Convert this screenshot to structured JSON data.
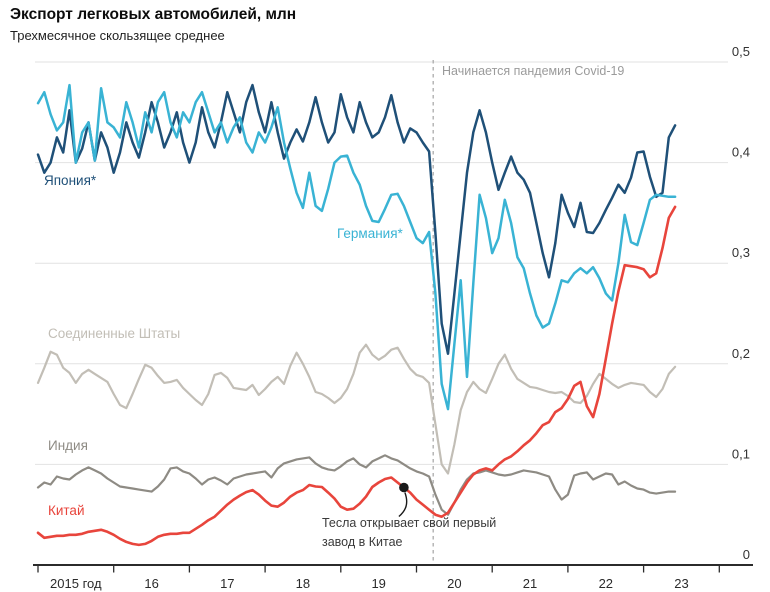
{
  "title": "Экспорт легковых автомобилей, млн",
  "subtitle": "Трехмесячное скользящее среднее",
  "chart_data": {
    "type": "line",
    "x_start_year": 2015,
    "points_per_year": 12,
    "x_tick_labels": [
      "2015 год",
      "16",
      "17",
      "18",
      "19",
      "20",
      "21",
      "22",
      "23"
    ],
    "y_tick_labels": [
      "0",
      "0,1",
      "0,2",
      "0,3",
      "0,4",
      "0,5"
    ],
    "ylim": [
      0,
      0.5
    ],
    "grid": true,
    "legend_position": "inline-labels",
    "annotations": {
      "covid": {
        "text": "Начинается пандемия Covid-19",
        "x_year": 2020.22
      },
      "tesla": {
        "text_line1": "Тесла открывает свой первый",
        "text_line2": "завод в Китае",
        "x_year": 2019.833,
        "value": 0.077
      }
    },
    "series": [
      {
        "id": "japan",
        "name": "Япония*",
        "color": "#1f5078",
        "values": [
          0.408,
          0.39,
          0.4,
          0.425,
          0.41,
          0.452,
          0.4,
          0.414,
          0.44,
          0.402,
          0.43,
          0.415,
          0.39,
          0.41,
          0.44,
          0.42,
          0.405,
          0.43,
          0.46,
          0.44,
          0.415,
          0.43,
          0.45,
          0.42,
          0.4,
          0.42,
          0.455,
          0.43,
          0.415,
          0.44,
          0.47,
          0.45,
          0.43,
          0.46,
          0.477,
          0.45,
          0.43,
          0.46,
          0.43,
          0.404,
          0.42,
          0.433,
          0.421,
          0.44,
          0.465,
          0.44,
          0.42,
          0.43,
          0.468,
          0.445,
          0.43,
          0.46,
          0.44,
          0.425,
          0.43,
          0.445,
          0.467,
          0.44,
          0.42,
          0.434,
          0.43,
          0.42,
          0.411,
          0.33,
          0.24,
          0.21,
          0.27,
          0.33,
          0.39,
          0.43,
          0.452,
          0.43,
          0.4,
          0.373,
          0.39,
          0.406,
          0.39,
          0.383,
          0.37,
          0.34,
          0.31,
          0.286,
          0.32,
          0.368,
          0.35,
          0.336,
          0.36,
          0.331,
          0.33,
          0.34,
          0.353,
          0.365,
          0.378,
          0.37,
          0.385,
          0.41,
          0.411,
          0.386,
          0.366,
          0.37,
          0.425,
          0.437
        ]
      },
      {
        "id": "germany",
        "name": "Германия*",
        "color": "#39b3d4",
        "values": [
          0.459,
          0.47,
          0.448,
          0.432,
          0.44,
          0.477,
          0.4,
          0.43,
          0.44,
          0.402,
          0.474,
          0.44,
          0.435,
          0.425,
          0.46,
          0.44,
          0.415,
          0.45,
          0.43,
          0.46,
          0.47,
          0.44,
          0.425,
          0.45,
          0.44,
          0.46,
          0.47,
          0.45,
          0.43,
          0.44,
          0.42,
          0.435,
          0.445,
          0.42,
          0.41,
          0.43,
          0.42,
          0.435,
          0.455,
          0.42,
          0.394,
          0.37,
          0.355,
          0.39,
          0.357,
          0.352,
          0.374,
          0.4,
          0.406,
          0.407,
          0.39,
          0.378,
          0.357,
          0.342,
          0.341,
          0.354,
          0.368,
          0.369,
          0.357,
          0.341,
          0.325,
          0.32,
          0.331,
          0.27,
          0.18,
          0.155,
          0.22,
          0.283,
          0.187,
          0.28,
          0.368,
          0.345,
          0.31,
          0.325,
          0.363,
          0.34,
          0.306,
          0.295,
          0.27,
          0.248,
          0.236,
          0.24,
          0.26,
          0.283,
          0.281,
          0.29,
          0.295,
          0.29,
          0.296,
          0.285,
          0.27,
          0.263,
          0.3,
          0.348,
          0.321,
          0.318,
          0.34,
          0.363,
          0.368,
          0.367,
          0.366,
          0.366
        ]
      },
      {
        "id": "united-states",
        "name": "Соединенные Штаты",
        "color": "#c2beb6",
        "values": [
          0.181,
          0.196,
          0.212,
          0.209,
          0.196,
          0.191,
          0.181,
          0.19,
          0.194,
          0.19,
          0.186,
          0.182,
          0.17,
          0.159,
          0.156,
          0.17,
          0.185,
          0.199,
          0.196,
          0.188,
          0.181,
          0.182,
          0.184,
          0.176,
          0.17,
          0.164,
          0.159,
          0.17,
          0.189,
          0.191,
          0.186,
          0.176,
          0.175,
          0.174,
          0.179,
          0.169,
          0.175,
          0.182,
          0.187,
          0.18,
          0.198,
          0.211,
          0.2,
          0.187,
          0.172,
          0.17,
          0.166,
          0.161,
          0.166,
          0.175,
          0.19,
          0.211,
          0.219,
          0.209,
          0.204,
          0.208,
          0.214,
          0.216,
          0.205,
          0.195,
          0.189,
          0.187,
          0.181,
          0.14,
          0.1,
          0.091,
          0.12,
          0.154,
          0.172,
          0.182,
          0.175,
          0.171,
          0.185,
          0.2,
          0.209,
          0.195,
          0.185,
          0.181,
          0.177,
          0.176,
          0.174,
          0.172,
          0.171,
          0.172,
          0.168,
          0.162,
          0.161,
          0.168,
          0.18,
          0.19,
          0.185,
          0.18,
          0.176,
          0.179,
          0.181,
          0.18,
          0.179,
          0.172,
          0.167,
          0.175,
          0.19,
          0.197
        ]
      },
      {
        "id": "india",
        "name": "Индия",
        "color": "#8e8b84",
        "values": [
          0.077,
          0.082,
          0.08,
          0.088,
          0.086,
          0.085,
          0.09,
          0.094,
          0.097,
          0.094,
          0.091,
          0.086,
          0.082,
          0.078,
          0.077,
          0.076,
          0.075,
          0.074,
          0.073,
          0.078,
          0.085,
          0.096,
          0.097,
          0.093,
          0.091,
          0.086,
          0.08,
          0.085,
          0.087,
          0.084,
          0.08,
          0.086,
          0.088,
          0.09,
          0.091,
          0.092,
          0.093,
          0.087,
          0.096,
          0.101,
          0.103,
          0.105,
          0.106,
          0.107,
          0.101,
          0.097,
          0.095,
          0.094,
          0.098,
          0.103,
          0.106,
          0.1,
          0.097,
          0.103,
          0.106,
          0.109,
          0.106,
          0.104,
          0.1,
          0.096,
          0.093,
          0.091,
          0.088,
          0.07,
          0.055,
          0.05,
          0.062,
          0.075,
          0.085,
          0.091,
          0.092,
          0.094,
          0.092,
          0.09,
          0.089,
          0.09,
          0.092,
          0.094,
          0.093,
          0.092,
          0.09,
          0.088,
          0.075,
          0.065,
          0.07,
          0.089,
          0.091,
          0.092,
          0.085,
          0.088,
          0.091,
          0.09,
          0.08,
          0.083,
          0.079,
          0.076,
          0.075,
          0.072,
          0.071,
          0.072,
          0.073,
          0.073
        ]
      },
      {
        "id": "china",
        "name": "Китай",
        "color": "#e8453c",
        "values": [
          0.032,
          0.027,
          0.028,
          0.029,
          0.029,
          0.03,
          0.03,
          0.031,
          0.033,
          0.034,
          0.035,
          0.033,
          0.03,
          0.026,
          0.023,
          0.021,
          0.02,
          0.021,
          0.024,
          0.028,
          0.03,
          0.031,
          0.031,
          0.032,
          0.032,
          0.036,
          0.04,
          0.0445,
          0.048,
          0.054,
          0.06,
          0.065,
          0.069,
          0.0725,
          0.0745,
          0.07,
          0.064,
          0.059,
          0.058,
          0.062,
          0.068,
          0.072,
          0.0745,
          0.0795,
          0.078,
          0.0775,
          0.072,
          0.066,
          0.058,
          0.055,
          0.056,
          0.061,
          0.068,
          0.0775,
          0.082,
          0.0855,
          0.087,
          0.082,
          0.077,
          0.072,
          0.065,
          0.06,
          0.055,
          0.05,
          0.048,
          0.052,
          0.062,
          0.072,
          0.082,
          0.09,
          0.094,
          0.096,
          0.094,
          0.1,
          0.105,
          0.108,
          0.113,
          0.119,
          0.124,
          0.131,
          0.139,
          0.142,
          0.152,
          0.156,
          0.165,
          0.178,
          0.182,
          0.158,
          0.147,
          0.17,
          0.205,
          0.24,
          0.272,
          0.298,
          0.297,
          0.296,
          0.294,
          0.286,
          0.29,
          0.315,
          0.345,
          0.356
        ]
      }
    ]
  }
}
